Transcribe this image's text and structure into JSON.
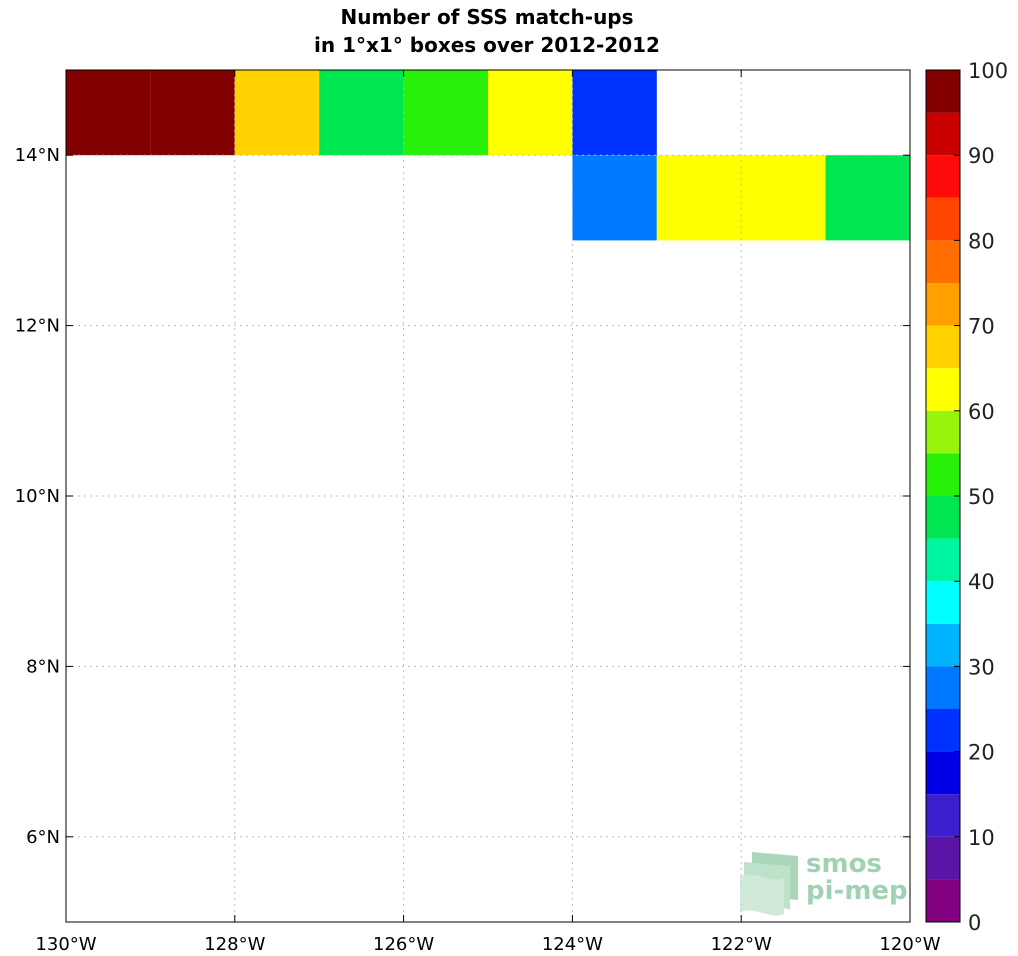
{
  "chart_data": {
    "type": "heatmap",
    "title_lines": [
      "Number of SSS match-ups",
      "in 1°x1° boxes over 2012-2012"
    ],
    "xlim": [
      -130,
      -120
    ],
    "ylim": [
      5,
      15
    ],
    "grid": true,
    "x_ticks": [
      {
        "value": -130,
        "label": "130°W"
      },
      {
        "value": -128,
        "label": "128°W"
      },
      {
        "value": -126,
        "label": "126°W"
      },
      {
        "value": -124,
        "label": "124°W"
      },
      {
        "value": -122,
        "label": "122°W"
      },
      {
        "value": -120,
        "label": "120°W"
      }
    ],
    "y_ticks": [
      {
        "value": 6,
        "label": "6°N"
      },
      {
        "value": 8,
        "label": "8°N"
      },
      {
        "value": 10,
        "label": "10°N"
      },
      {
        "value": 12,
        "label": "12°N"
      },
      {
        "value": 14,
        "label": "14°N"
      }
    ],
    "cells": [
      {
        "lon": -130,
        "lat": 14,
        "value": 100
      },
      {
        "lon": -129,
        "lat": 14,
        "value": 100
      },
      {
        "lon": -128,
        "lat": 14,
        "value": 68
      },
      {
        "lon": -127,
        "lat": 14,
        "value": 48
      },
      {
        "lon": -126,
        "lat": 14,
        "value": 52
      },
      {
        "lon": -125,
        "lat": 14,
        "value": 62
      },
      {
        "lon": -124,
        "lat": 14,
        "value": 22
      },
      {
        "lon": -124,
        "lat": 13,
        "value": 27
      },
      {
        "lon": -123,
        "lat": 13,
        "value": 62
      },
      {
        "lon": -122,
        "lat": 13,
        "value": 62
      },
      {
        "lon": -121,
        "lat": 13,
        "value": 48
      }
    ],
    "colorbar": {
      "min": 0,
      "max": 100,
      "tick_values": [
        0,
        10,
        20,
        30,
        40,
        50,
        60,
        70,
        80,
        90,
        100
      ],
      "tick_labels": [
        "0",
        "10",
        "20",
        "30",
        "40",
        "50",
        "60",
        "70",
        "80",
        "90",
        "100"
      ],
      "colors": [
        "#800080",
        "#5a14a6",
        "#3c1ecc",
        "#0000e6",
        "#0032ff",
        "#0078ff",
        "#00b4ff",
        "#00ffff",
        "#00f5a0",
        "#00e650",
        "#28f00a",
        "#96f50a",
        "#ffff00",
        "#ffd200",
        "#ffa000",
        "#ff6e00",
        "#ff4600",
        "#ff0a0a",
        "#c80000",
        "#820000"
      ]
    },
    "logo": {
      "line1": "smos",
      "line2": "pi-mep"
    }
  }
}
